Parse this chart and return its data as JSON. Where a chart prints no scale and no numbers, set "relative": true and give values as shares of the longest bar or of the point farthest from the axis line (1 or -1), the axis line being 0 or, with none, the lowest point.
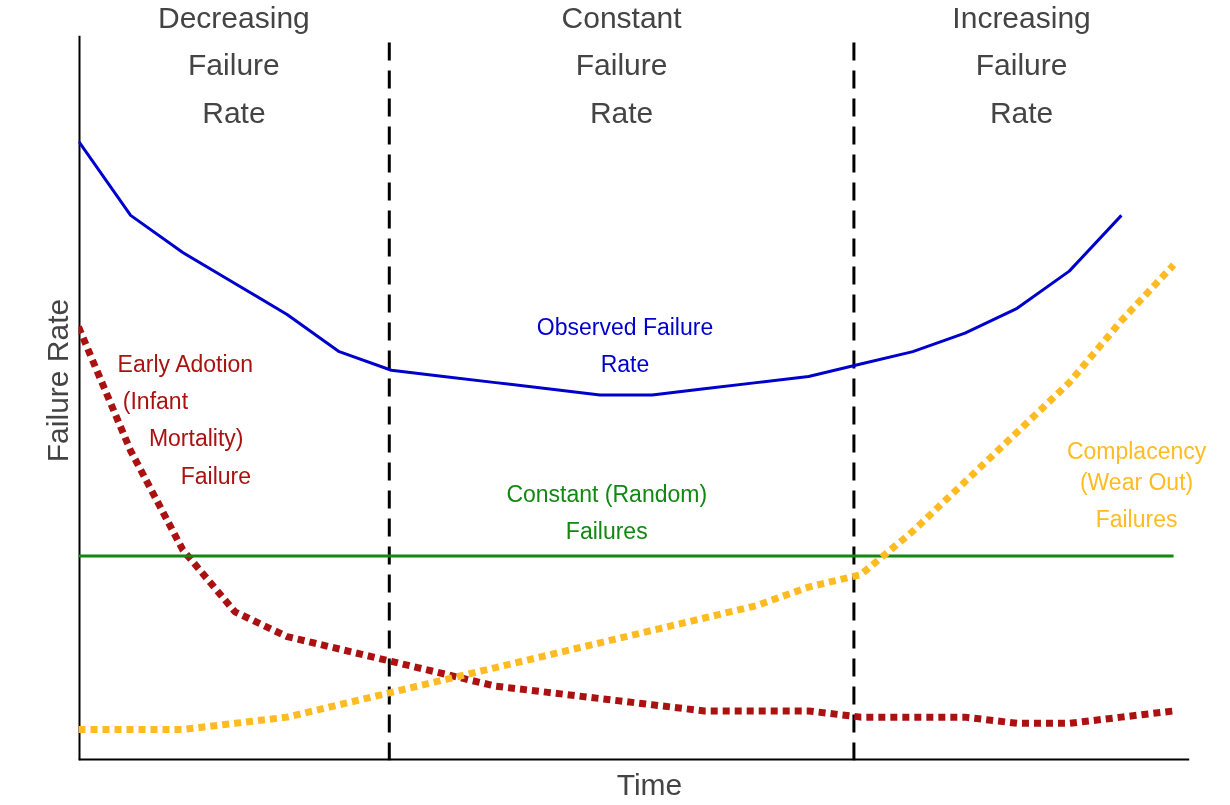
{
  "chart_data": {
    "type": "line",
    "relative": true,
    "xlabel": "Time",
    "ylabel": "Failure Rate",
    "categories": [
      null,
      null,
      null,
      null,
      null,
      null,
      null,
      null,
      null,
      null,
      null,
      null,
      null,
      null,
      null,
      null,
      null,
      null,
      null,
      null,
      null,
      null
    ],
    "series": [
      {
        "name": "Observed Failure\nRate",
        "color": "#0000cc",
        "line_style": "solid",
        "values": [
          1.0,
          0.88,
          0.82,
          0.77,
          0.72,
          0.66,
          0.63,
          0.62,
          0.61,
          0.6,
          0.59,
          0.59,
          0.6,
          0.61,
          0.62,
          0.64,
          0.66,
          0.69,
          0.73,
          0.79,
          0.88,
          null
        ]
      },
      {
        "name": "Early Adotion\n(Infant\nMortality)\nFailure",
        "color": "#aa1111",
        "line_style": "dotted",
        "values": [
          0.7,
          0.5,
          0.34,
          0.24,
          0.2,
          0.18,
          0.16,
          0.14,
          0.12,
          0.11,
          0.1,
          0.09,
          0.08,
          0.08,
          0.08,
          0.07,
          0.07,
          0.07,
          0.06,
          0.06,
          0.07,
          0.08
        ]
      },
      {
        "name": "Constant (Random)\nFailures",
        "color": "#118811",
        "line_style": "solid",
        "values": [
          0.33,
          0.33,
          0.33,
          0.33,
          0.33,
          0.33,
          0.33,
          0.33,
          0.33,
          0.33,
          0.33,
          0.33,
          0.33,
          0.33,
          0.33,
          0.33,
          0.33,
          0.33,
          0.33,
          0.33,
          0.33,
          0.33
        ]
      },
      {
        "name": "Complacency\n(Wear Out)\nFailures",
        "color": "#ffbb22",
        "line_style": "dotted",
        "values": [
          0.05,
          0.05,
          0.05,
          0.06,
          0.07,
          0.09,
          0.11,
          0.13,
          0.15,
          0.17,
          0.19,
          0.21,
          0.23,
          0.25,
          0.28,
          0.3,
          0.37,
          0.45,
          0.53,
          0.61,
          0.71,
          0.8
        ]
      }
    ],
    "annotations": [
      "Decreasing\nFailure\nRate",
      "Constant\nFailure\nRate",
      "Increasing\nFailure\nRate"
    ]
  }
}
